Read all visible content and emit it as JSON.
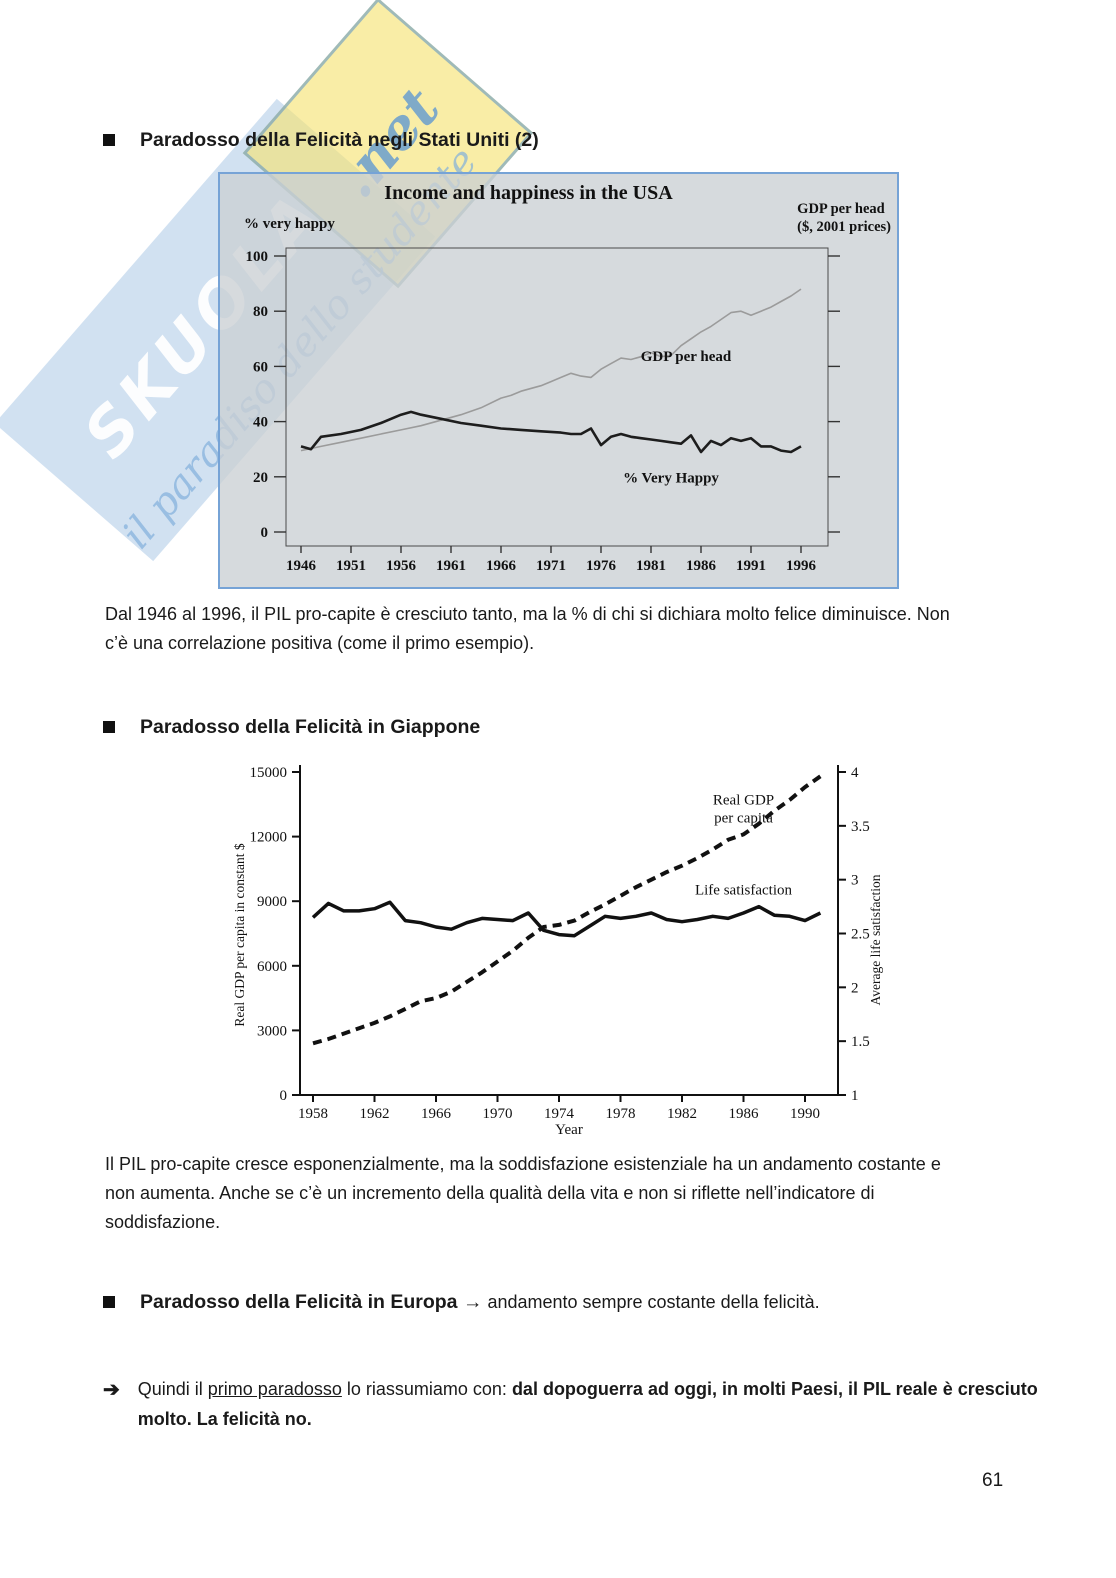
{
  "page": {
    "number": "61"
  },
  "watermark": {
    "brand": "SKUOLA",
    "tld": ".net",
    "tagline": "il paradiso dello studente"
  },
  "sections": {
    "usa": {
      "heading": "Paradosso della Felicità negli Stati Uniti (2)",
      "paragraph": "Dal 1946 al 1996, il PIL pro-capite è cresciuto tanto, ma la % di chi si dichiara molto felice diminuisce. Non\nc’è una correlazione positiva (come il primo esempio)."
    },
    "japan": {
      "heading": "Paradosso della Felicità in Giappone",
      "paragraph": "Il PIL pro-capite cresce esponenzialmente, ma la soddisfazione esistenziale ha un andamento costante e\nnon aumenta. Anche se c’è un incremento della qualità della vita e non si riflette nell’indicatore di\nsoddisfazione."
    },
    "europe": {
      "heading_bold": "Paradosso della Felicità in Europa",
      "arrow": "→",
      "rest": " andamento sempre costante della felicità."
    },
    "conclusion": {
      "bullet": "➔",
      "lead": "Quindi il ",
      "underlined": "primo paradosso",
      "mid": " lo riassumiamo con: ",
      "bold": "dal dopoguerra ad oggi, in molti Paesi, il PIL reale è cresciuto molto. La felicità no."
    }
  },
  "chart_data": [
    {
      "type": "line",
      "title": "Income and happiness in the USA",
      "ylabel": "% very happy",
      "right_label": "GDP per head\n($, 2001 prices)",
      "xlim": [
        1946,
        1996
      ],
      "ylim": [
        0,
        100
      ],
      "xticks": [
        1946,
        1951,
        1956,
        1961,
        1966,
        1971,
        1976,
        1981,
        1986,
        1991,
        1996
      ],
      "yticks": [
        0,
        20,
        40,
        60,
        80,
        100
      ],
      "grid": false,
      "legend_position": "inline-annotations",
      "series": [
        {
          "name": "GDP per head",
          "style": "solid",
          "color": "#9b9b9b",
          "width": 1.6,
          "x": [
            1946,
            1948,
            1950,
            1952,
            1954,
            1956,
            1958,
            1960,
            1962,
            1964,
            1966,
            1967,
            1968,
            1970,
            1971,
            1972,
            1973,
            1974,
            1975,
            1976,
            1977,
            1978,
            1979,
            1980,
            1981,
            1982,
            1983,
            1984,
            1985,
            1986,
            1987,
            1988,
            1989,
            1990,
            1991,
            1992,
            1993,
            1994,
            1995,
            1996
          ],
          "values": [
            29.5,
            31,
            32.5,
            34,
            35.5,
            37,
            38.5,
            40.5,
            42.5,
            45,
            48.5,
            49.5,
            51,
            53,
            54.5,
            56,
            57.5,
            56.5,
            56,
            59,
            61,
            63,
            62.5,
            63.5,
            65,
            63.5,
            64,
            67.5,
            70,
            72.5,
            74.5,
            77,
            79.5,
            80,
            78.5,
            80,
            81.5,
            83.5,
            85.5,
            88
          ]
        },
        {
          "name": "% Very Happy",
          "style": "solid",
          "color": "#1d1d1d",
          "width": 2.6,
          "x": [
            1946,
            1947,
            1948,
            1950,
            1952,
            1954,
            1956,
            1957,
            1958,
            1960,
            1962,
            1964,
            1966,
            1968,
            1970,
            1972,
            1973,
            1974,
            1975,
            1976,
            1977,
            1978,
            1979,
            1980,
            1981,
            1982,
            1983,
            1984,
            1985,
            1986,
            1987,
            1988,
            1989,
            1990,
            1991,
            1992,
            1993,
            1994,
            1995,
            1996
          ],
          "values": [
            31,
            30,
            34.5,
            35.5,
            37,
            39.5,
            42.5,
            43.5,
            42.5,
            41,
            39.5,
            38.5,
            37.5,
            37,
            36.5,
            36,
            35.5,
            35.5,
            37.5,
            31.5,
            34.5,
            35.5,
            34.5,
            34,
            33.5,
            33,
            32.5,
            32,
            35,
            29,
            33,
            31.5,
            34,
            33,
            34,
            31,
            31,
            29.5,
            29,
            31
          ]
        }
      ],
      "annotations": [
        {
          "text": "GDP per head",
          "x": 1984.5,
          "y": 62
        },
        {
          "text": "% Very Happy",
          "x": 1983,
          "y": 18
        }
      ]
    },
    {
      "type": "line",
      "xlabel": "Year",
      "left_axis_label": "Real GDP per capita in constant $",
      "right_axis_label": "Average life satisfaction",
      "xlim": [
        1958,
        1991
      ],
      "left_ylim": [
        0,
        15000
      ],
      "right_ylim": [
        1,
        4
      ],
      "xticks": [
        1958,
        1962,
        1966,
        1970,
        1974,
        1978,
        1982,
        1986,
        1990
      ],
      "left_yticks": [
        0,
        3000,
        6000,
        9000,
        12000,
        15000
      ],
      "right_yticks": [
        1,
        1.5,
        2,
        2.5,
        3,
        3.5,
        4
      ],
      "grid": false,
      "series": [
        {
          "name": "Real GDP per capita",
          "axis": "left",
          "style": "dashed",
          "color": "#111111",
          "width": 4,
          "x": [
            1958,
            1959,
            1960,
            1961,
            1962,
            1963,
            1964,
            1965,
            1966,
            1967,
            1968,
            1969,
            1970,
            1971,
            1972,
            1973,
            1974,
            1975,
            1976,
            1977,
            1978,
            1979,
            1980,
            1981,
            1982,
            1983,
            1984,
            1985,
            1986,
            1987,
            1988,
            1989,
            1990,
            1991
          ],
          "values": [
            2400,
            2600,
            2850,
            3100,
            3350,
            3650,
            4000,
            4350,
            4500,
            4800,
            5250,
            5700,
            6200,
            6700,
            7300,
            7800,
            7900,
            8100,
            8500,
            8850,
            9250,
            9650,
            10000,
            10350,
            10650,
            11000,
            11400,
            11850,
            12100,
            12600,
            13200,
            13700,
            14300,
            14800
          ]
        },
        {
          "name": "Life satisfaction",
          "axis": "right",
          "style": "solid",
          "color": "#111111",
          "width": 3.5,
          "x": [
            1958,
            1959,
            1960,
            1961,
            1962,
            1963,
            1964,
            1965,
            1966,
            1967,
            1968,
            1969,
            1970,
            1971,
            1972,
            1973,
            1974,
            1975,
            1976,
            1977,
            1978,
            1979,
            1980,
            1981,
            1982,
            1983,
            1984,
            1985,
            1986,
            1987,
            1988,
            1989,
            1990,
            1991
          ],
          "values": [
            2.65,
            2.78,
            2.71,
            2.71,
            2.73,
            2.79,
            2.62,
            2.6,
            2.56,
            2.54,
            2.6,
            2.64,
            2.63,
            2.62,
            2.69,
            2.53,
            2.49,
            2.48,
            2.57,
            2.66,
            2.64,
            2.66,
            2.69,
            2.63,
            2.61,
            2.63,
            2.66,
            2.64,
            2.69,
            2.75,
            2.67,
            2.66,
            2.62,
            2.69
          ]
        }
      ],
      "annotations": [
        {
          "text": "Real GDP\nper capita",
          "x": 1986,
          "y": 13500,
          "axis": "left"
        },
        {
          "text": "Life satisfaction",
          "x": 1986,
          "y": 2.86,
          "axis": "right"
        }
      ]
    }
  ]
}
